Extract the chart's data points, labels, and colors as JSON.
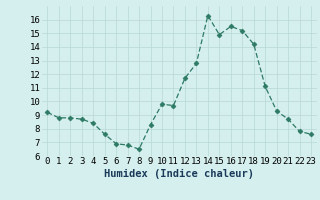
{
  "x": [
    0,
    1,
    2,
    3,
    4,
    5,
    6,
    7,
    8,
    9,
    10,
    11,
    12,
    13,
    14,
    15,
    16,
    17,
    18,
    19,
    20,
    21,
    22,
    23
  ],
  "y": [
    9.2,
    8.8,
    8.8,
    8.7,
    8.4,
    7.6,
    6.9,
    6.8,
    6.5,
    8.3,
    9.8,
    9.7,
    11.7,
    12.8,
    16.3,
    14.9,
    15.5,
    15.2,
    14.2,
    11.1,
    9.3,
    8.7,
    7.8,
    7.6
  ],
  "line_color": "#2d7a65",
  "marker": "D",
  "marker_size": 2.5,
  "bg_color": "#d5efee",
  "grid_color": "#b8d8d5",
  "xlabel": "Humidex (Indice chaleur)",
  "ylim": [
    6,
    17
  ],
  "yticks": [
    6,
    7,
    8,
    9,
    10,
    11,
    12,
    13,
    14,
    15,
    16
  ],
  "xticks": [
    0,
    1,
    2,
    3,
    4,
    5,
    6,
    7,
    8,
    9,
    10,
    11,
    12,
    13,
    14,
    15,
    16,
    17,
    18,
    19,
    20,
    21,
    22,
    23
  ],
  "xlabel_fontsize": 7.5,
  "tick_fontsize": 6.5
}
